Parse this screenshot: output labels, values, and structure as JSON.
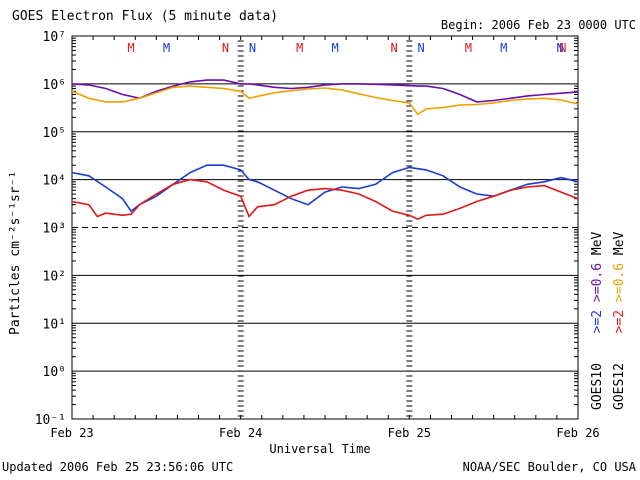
{
  "header": {
    "title": "GOES Electron Flux (5 minute data)",
    "begin": "Begin: 2006 Feb 23 0000 UTC"
  },
  "footer": {
    "updated": "Updated 2006 Feb 25 23:56:06 UTC",
    "credit": "NOAA/SEC Boulder, CO USA"
  },
  "colors": {
    "goes10_high": "#6a0dad",
    "goes12_high": "#f0a000",
    "goes10_low": "#1a3ad8",
    "goes12_low": "#e01818"
  },
  "chart_data": {
    "type": "line",
    "title": "GOES Electron Flux (5 minute data)",
    "xlabel": "Universal Time",
    "ylabel": "Particles cm⁻²s⁻¹sr⁻¹",
    "yscale": "log",
    "ylim": [
      0.1,
      10000000
    ],
    "ytick_labels": [
      "10⁷",
      "10⁶",
      "10⁵",
      "10⁴",
      "10³",
      "10²",
      "10¹",
      "10⁰",
      "10⁻¹"
    ],
    "xlim_days": [
      0,
      3
    ],
    "x_tick_labels": [
      "Feb 23",
      "Feb 24",
      "Feb 25",
      "Feb 26"
    ],
    "threshold_dashed_y": 1000,
    "eclipse_markers": [
      {
        "label": "M",
        "x": 0.35,
        "sat": "GOES12"
      },
      {
        "label": "M",
        "x": 0.56,
        "sat": "GOES10"
      },
      {
        "label": "N",
        "x": 0.91,
        "sat": "GOES12"
      },
      {
        "label": "N",
        "x": 1.07,
        "sat": "GOES10"
      },
      {
        "label": "M",
        "x": 1.35,
        "sat": "GOES12"
      },
      {
        "label": "M",
        "x": 1.56,
        "sat": "GOES10"
      },
      {
        "label": "N",
        "x": 1.91,
        "sat": "GOES12"
      },
      {
        "label": "N",
        "x": 2.07,
        "sat": "GOES10"
      },
      {
        "label": "M",
        "x": 2.35,
        "sat": "GOES12"
      },
      {
        "label": "M",
        "x": 2.56,
        "sat": "GOES10"
      },
      {
        "label": "N",
        "x": 2.91,
        "sat": "GOES12"
      },
      {
        "label": "N",
        "x": 3.07,
        "sat": "GOES10"
      }
    ],
    "series": [
      {
        "name": ">=0.6 MeV",
        "sat": "GOES10",
        "color": "#6a0dad",
        "x": [
          0,
          0.1,
          0.2,
          0.3,
          0.4,
          0.5,
          0.6,
          0.7,
          0.8,
          0.9,
          1.0,
          1.05,
          1.1,
          1.2,
          1.3,
          1.4,
          1.5,
          1.6,
          1.7,
          1.8,
          1.9,
          2.0,
          2.05,
          2.1,
          2.2,
          2.3,
          2.4,
          2.5,
          2.6,
          2.7,
          2.8,
          2.9,
          3.0
        ],
        "y": [
          1000000,
          950000,
          800000,
          600000,
          500000,
          700000,
          900000,
          1100000,
          1200000,
          1200000,
          1000000,
          1000000,
          950000,
          850000,
          800000,
          850000,
          950000,
          1000000,
          1000000,
          980000,
          950000,
          920000,
          900000,
          900000,
          800000,
          600000,
          420000,
          450000,
          500000,
          560000,
          600000,
          640000,
          680000
        ]
      },
      {
        "name": ">=0.6 MeV",
        "sat": "GOES12",
        "color": "#f0a000",
        "x": [
          0,
          0.1,
          0.2,
          0.3,
          0.4,
          0.5,
          0.6,
          0.7,
          0.8,
          0.9,
          1.0,
          1.05,
          1.1,
          1.2,
          1.3,
          1.4,
          1.5,
          1.6,
          1.7,
          1.8,
          1.9,
          2.0,
          2.05,
          2.1,
          2.2,
          2.3,
          2.4,
          2.5,
          2.6,
          2.7,
          2.8,
          2.9,
          3.0
        ],
        "y": [
          700000,
          500000,
          420000,
          420000,
          500000,
          650000,
          850000,
          900000,
          850000,
          800000,
          700000,
          500000,
          550000,
          650000,
          720000,
          780000,
          820000,
          750000,
          620000,
          520000,
          450000,
          400000,
          230000,
          300000,
          320000,
          360000,
          370000,
          400000,
          450000,
          480000,
          500000,
          460000,
          380000
        ]
      },
      {
        "name": ">=2 MeV",
        "sat": "GOES10",
        "color": "#1a3ad8",
        "x": [
          0,
          0.1,
          0.2,
          0.3,
          0.35,
          0.4,
          0.5,
          0.6,
          0.7,
          0.8,
          0.9,
          1.0,
          1.05,
          1.1,
          1.2,
          1.3,
          1.4,
          1.5,
          1.6,
          1.7,
          1.8,
          1.9,
          2.0,
          2.1,
          2.2,
          2.3,
          2.4,
          2.5,
          2.6,
          2.7,
          2.8,
          2.9,
          3.0
        ],
        "y": [
          14000,
          12000,
          7000,
          4000,
          2200,
          3000,
          4500,
          8000,
          14000,
          20000,
          20000,
          16000,
          10000,
          9000,
          6000,
          4000,
          3000,
          5500,
          7000,
          6500,
          8000,
          14000,
          18000,
          16000,
          12000,
          7000,
          5000,
          4500,
          6000,
          8000,
          9000,
          11000,
          9000
        ]
      },
      {
        "name": ">=2 MeV",
        "sat": "GOES12",
        "color": "#e01818",
        "x": [
          0,
          0.1,
          0.15,
          0.2,
          0.3,
          0.35,
          0.4,
          0.5,
          0.6,
          0.7,
          0.8,
          0.9,
          1.0,
          1.05,
          1.1,
          1.2,
          1.3,
          1.4,
          1.5,
          1.6,
          1.7,
          1.8,
          1.9,
          2.0,
          2.05,
          2.1,
          2.2,
          2.3,
          2.4,
          2.5,
          2.6,
          2.7,
          2.8,
          2.9,
          3.0
        ],
        "y": [
          3500,
          3000,
          1700,
          2000,
          1800,
          1900,
          3000,
          5000,
          8000,
          10000,
          9000,
          6000,
          4500,
          1700,
          2700,
          3000,
          4500,
          6000,
          6500,
          6000,
          5000,
          3500,
          2200,
          1800,
          1500,
          1800,
          1900,
          2500,
          3500,
          4500,
          6000,
          7000,
          7500,
          5500,
          4000
        ]
      }
    ],
    "legend": [
      {
        "sat": "GOES10",
        "entries": [
          {
            "text": ">=2",
            "color": "#1a3ad8"
          },
          {
            "text": ">=0.6",
            "color": "#6a0dad"
          },
          {
            "text": "MeV",
            "color": "#000000"
          }
        ]
      },
      {
        "sat": "GOES12",
        "entries": [
          {
            "text": ">=2",
            "color": "#e01818"
          },
          {
            "text": ">=0.6",
            "color": "#f0a000"
          },
          {
            "text": "MeV",
            "color": "#000000"
          }
        ]
      }
    ]
  }
}
